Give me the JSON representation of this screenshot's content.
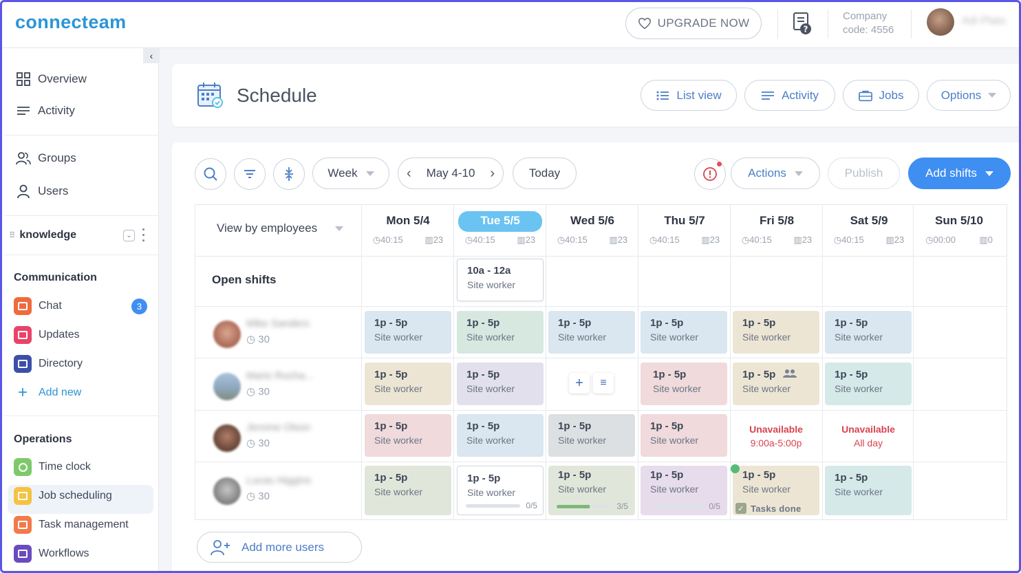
{
  "app": {
    "logo": "connecteam"
  },
  "top": {
    "upgrade_label": "UPGRADE NOW",
    "company_label": "Company",
    "company_code": "code: 4556",
    "user_name": "Adi Plato"
  },
  "sidebar": {
    "nav": [
      {
        "label": "Overview",
        "icon": "grid-icon"
      },
      {
        "label": "Activity",
        "icon": "lines-icon"
      },
      {
        "label": "Groups",
        "icon": "groups-icon"
      },
      {
        "label": "Users",
        "icon": "user-icon"
      }
    ],
    "knowledge_label": "knowledge",
    "communication_title": "Communication",
    "communication": [
      {
        "label": "Chat",
        "color": "#f06a3e",
        "badge": "3"
      },
      {
        "label": "Updates",
        "color": "#e9436a"
      },
      {
        "label": "Directory",
        "color": "#3d4fa8"
      }
    ],
    "add_new_label": "Add new",
    "operations_title": "Operations",
    "operations": [
      {
        "label": "Time clock",
        "color": "#7ec96a"
      },
      {
        "label": "Job scheduling",
        "color": "#f5c242"
      },
      {
        "label": "Task management",
        "color": "#f27a4a"
      },
      {
        "label": "Workflows",
        "color": "#6a4bbf"
      }
    ]
  },
  "header": {
    "title": "Schedule",
    "buttons": {
      "list_view": "List view",
      "activity": "Activity",
      "jobs": "Jobs",
      "options": "Options"
    }
  },
  "toolbar": {
    "period": "Week",
    "range": "May 4-10",
    "today": "Today",
    "actions": "Actions",
    "publish": "Publish",
    "add_shifts": "Add shifts"
  },
  "grid": {
    "view_by": "View by employees",
    "open_shifts_label": "Open shifts",
    "days": [
      {
        "label": "Mon 5/4",
        "hours": "40:15",
        "count": "23"
      },
      {
        "label": "Tue 5/5",
        "hours": "40:15",
        "count": "23",
        "today": true
      },
      {
        "label": "Wed 5/6",
        "hours": "40:15",
        "count": "23"
      },
      {
        "label": "Thu 5/7",
        "hours": "40:15",
        "count": "23"
      },
      {
        "label": "Fri 5/8",
        "hours": "40:15",
        "count": "23"
      },
      {
        "label": "Sat 5/9",
        "hours": "40:15",
        "count": "23"
      },
      {
        "label": "Sun 5/10",
        "hours": "00:00",
        "count": "0"
      }
    ],
    "open_shift": {
      "time": "10a - 12a",
      "role": "Site worker"
    },
    "employees": [
      {
        "name": "Mike Sanders",
        "hours": "30"
      },
      {
        "name": "Mario Rocha...",
        "hours": "30"
      },
      {
        "name": "Jerome Olson",
        "hours": "30"
      },
      {
        "name": "Lucas Higgins",
        "hours": "30"
      }
    ],
    "shift_time": "1p - 5p",
    "shift_role": "Site worker",
    "unavailable": [
      {
        "title": "Unavailable",
        "sub": "9:00a-5:00p"
      },
      {
        "title": "Unavailable",
        "sub": "All day"
      }
    ],
    "progress": [
      {
        "text": "0/5",
        "fraction": 0
      },
      {
        "text": "3/5",
        "fraction": 0.6
      },
      {
        "text": "0/5",
        "fraction": 0
      }
    ],
    "tasks_done": "Tasks done",
    "add_more_users": "Add more users"
  }
}
